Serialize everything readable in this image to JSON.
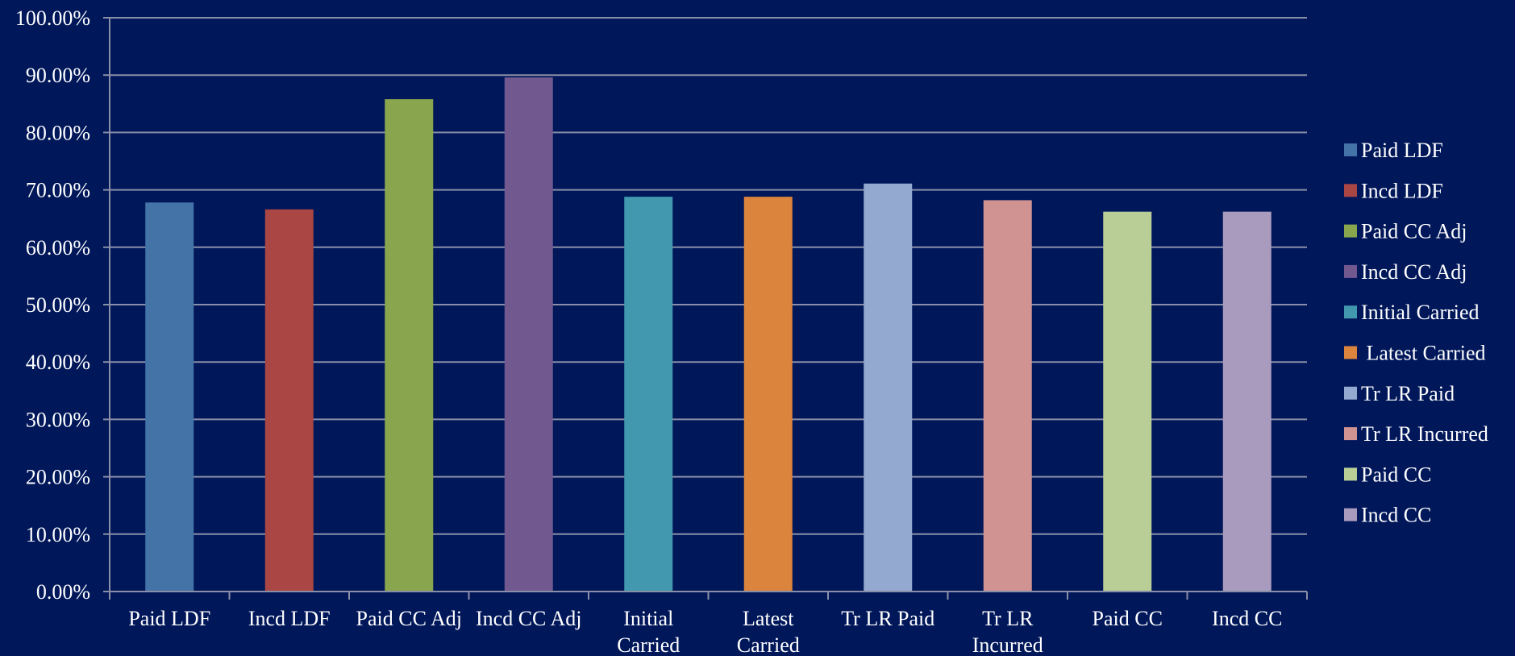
{
  "chart_data": {
    "type": "bar",
    "title": "",
    "xlabel": "",
    "ylabel": "",
    "categories": [
      "Paid LDF",
      "Incd LDF",
      "Paid CC Adj",
      "Incd CC Adj",
      "Initial Carried",
      "Latest Carried",
      "Tr LR Paid",
      "Tr LR Incurred",
      "Paid CC",
      "Incd CC"
    ],
    "category_label_lines": [
      [
        "Paid LDF"
      ],
      [
        "Incd LDF"
      ],
      [
        "Paid CC Adj"
      ],
      [
        "Incd CC Adj"
      ],
      [
        "Initial",
        "Carried"
      ],
      [
        "Latest",
        "Carried"
      ],
      [
        "Tr LR Paid"
      ],
      [
        "Tr LR",
        "Incurred"
      ],
      [
        "Paid CC"
      ],
      [
        "Incd CC"
      ]
    ],
    "values": [
      67.8,
      66.6,
      85.8,
      89.6,
      68.8,
      68.8,
      71.1,
      68.2,
      66.2,
      66.2
    ],
    "colors": [
      "#4473a8",
      "#aa4643",
      "#89a54e",
      "#71588f",
      "#4198af",
      "#db843d",
      "#93a9cf",
      "#d19392",
      "#b9cd96",
      "#a99bbd"
    ],
    "series_legend": [
      "Paid LDF",
      "Incd LDF",
      "Paid CC Adj",
      "Incd CC Adj",
      "Initial Carried",
      " Latest Carried",
      "Tr LR Paid",
      "Tr LR Incurred",
      "Paid CC",
      "Incd CC"
    ],
    "ylim": [
      0,
      100
    ],
    "yticks": [
      0,
      10,
      20,
      30,
      40,
      50,
      60,
      70,
      80,
      90,
      100
    ],
    "ytick_labels": [
      "0.00%",
      "10.00%",
      "20.00%",
      "30.00%",
      "40.00%",
      "50.00%",
      "60.00%",
      "70.00%",
      "80.00%",
      "90.00%",
      "100.00%"
    ],
    "grid": true,
    "legend_position": "right",
    "background_color": "#00175a",
    "grid_color": "#8a8fa8",
    "text_color": "#ffffff"
  }
}
